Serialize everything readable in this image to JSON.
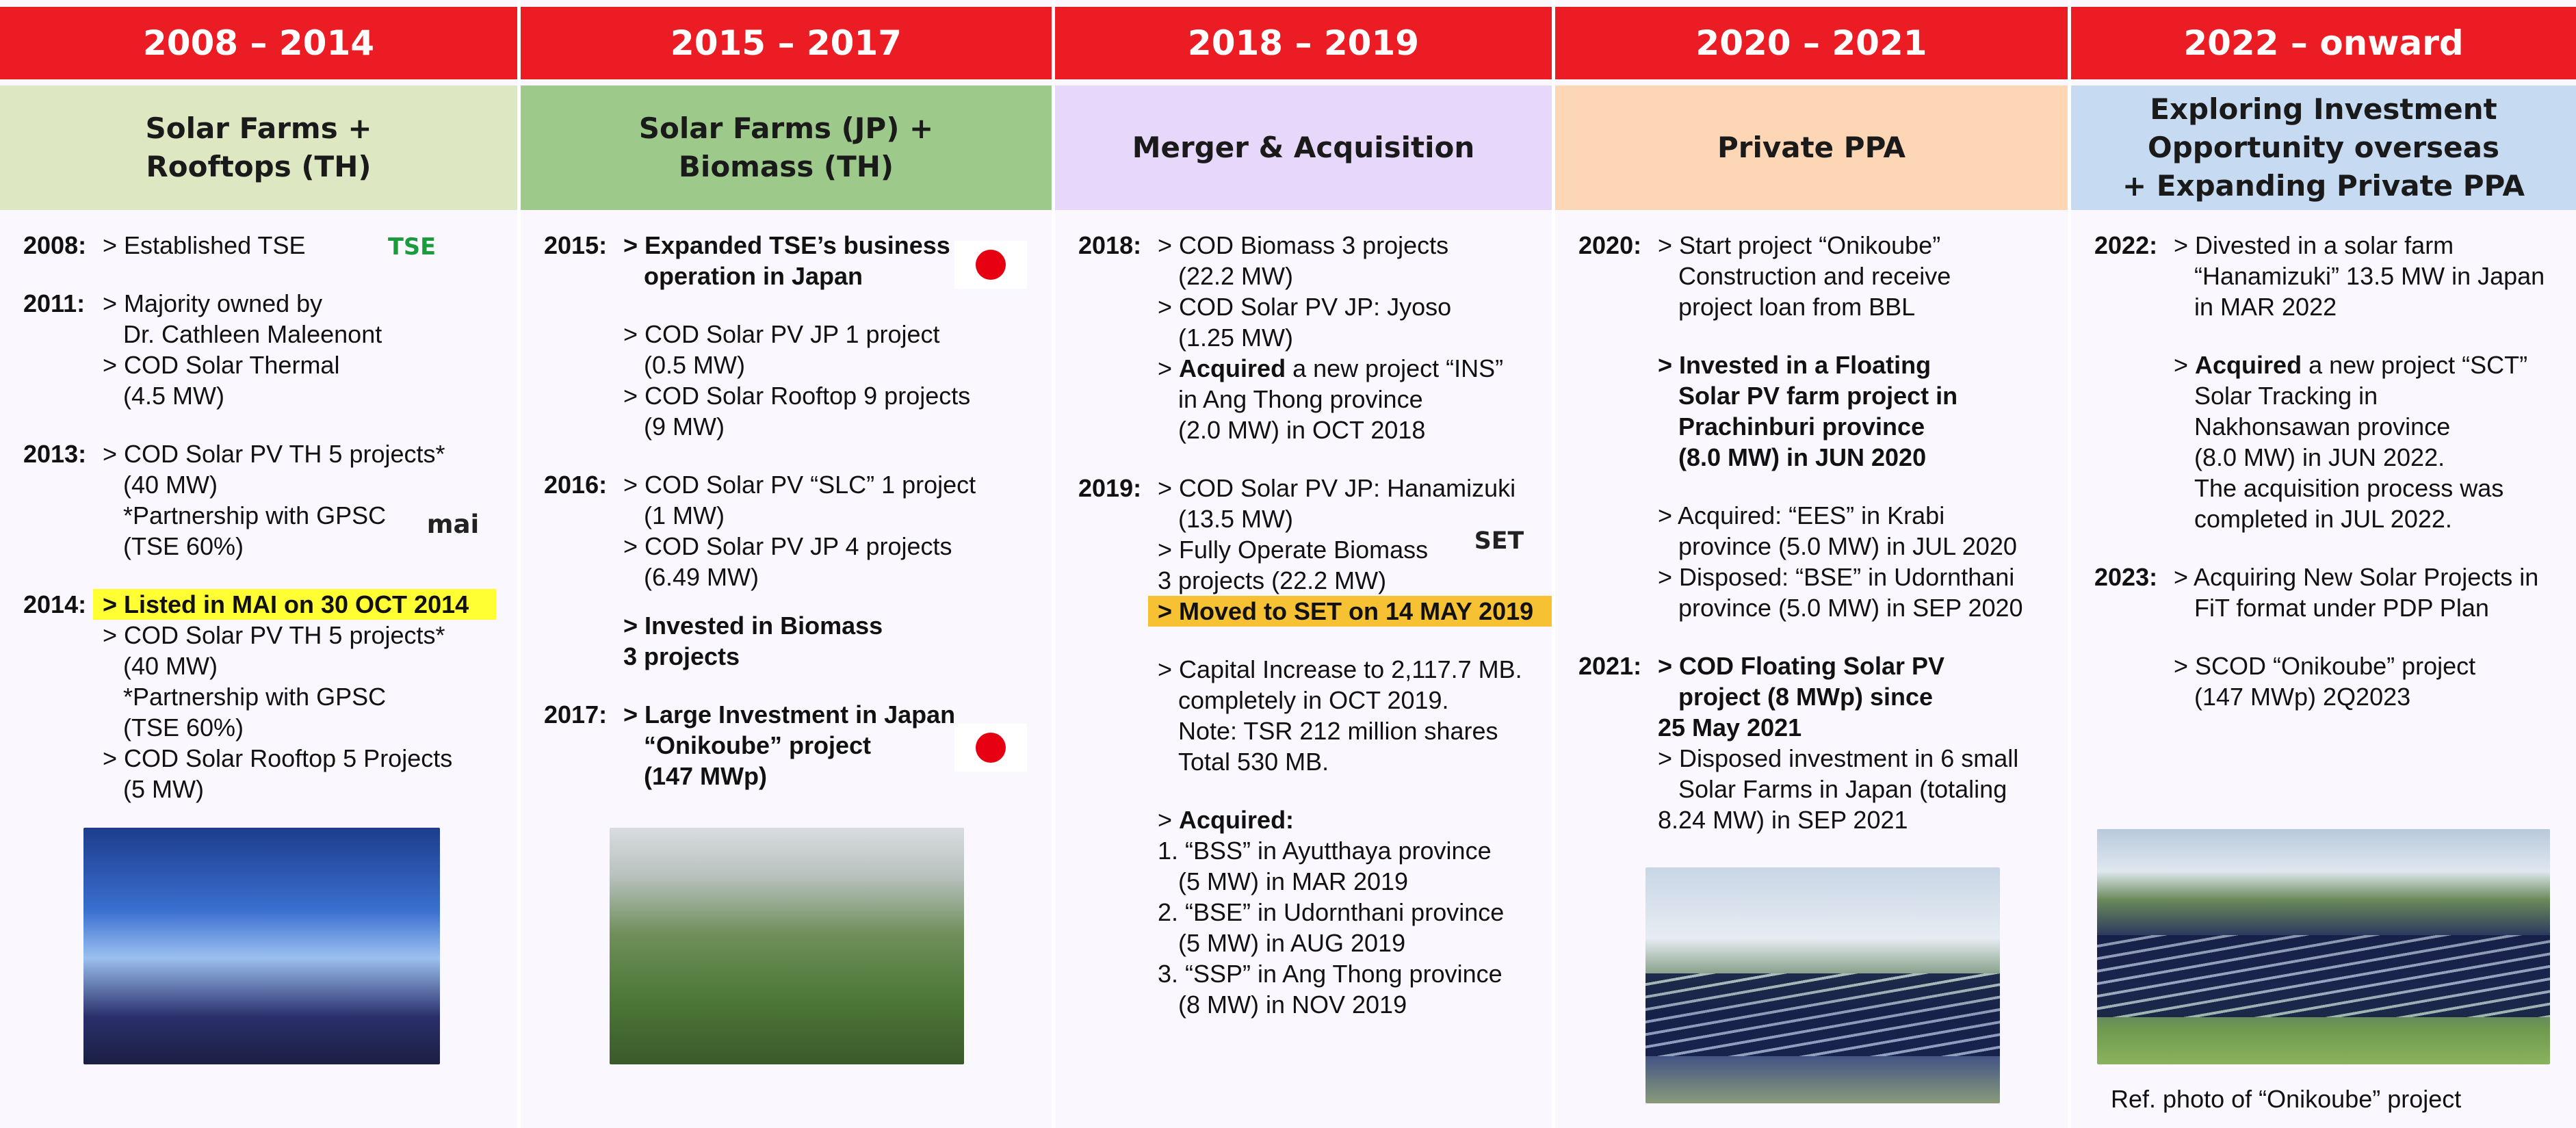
{
  "header_color": "#ec1c24",
  "columns": [
    {
      "period": "2008 – 2014",
      "theme": "Solar  Farms +\nRooftops (TH)",
      "theme_color": "#dde7c1",
      "logos": [
        "TSE",
        "mai"
      ],
      "entries": [
        {
          "year": "2008:",
          "lines": [
            "> Established TSE"
          ]
        },
        {
          "year": "2011:",
          "lines": [
            "> Majority owned by",
            "Dr. Cathleen Maleenont",
            "> COD Solar Thermal",
            "(4.5 MW)"
          ]
        },
        {
          "year": "2013:",
          "lines": [
            "> COD Solar PV TH 5 projects*",
            "(40 MW)",
            "*Partnership with GPSC",
            "(TSE 60%)"
          ]
        },
        {
          "year": "2014:",
          "lines": [
            {
              "text": "> Listed in MAI on 30 OCT 2014",
              "bold": true,
              "highlight": "#ffff33"
            },
            "> COD Solar PV TH 5 projects*",
            "(40 MW)",
            "*Partnership with GPSC",
            "(TSE 60%)",
            "> COD Solar Rooftop 5 Projects",
            "(5 MW)"
          ]
        }
      ]
    },
    {
      "period": "2015 – 2017",
      "theme": "Solar Farms (JP) +\nBiomass (TH)",
      "theme_color": "#9dc98a",
      "entries": [
        {
          "year": "2015:",
          "lines": [
            {
              "text": "> Expanded TSE’s business",
              "bold": true
            },
            {
              "text": "operation in Japan",
              "bold": true
            }
          ]
        },
        {
          "lines": [
            "> COD Solar PV JP 1 project",
            "(0.5 MW)",
            "> COD Solar Rooftop 9 projects",
            "(9 MW)"
          ]
        },
        {
          "year": "2016:",
          "lines": [
            "> COD Solar PV “SLC” 1 project",
            "(1 MW)",
            "> COD Solar PV JP 4 projects",
            "(6.49 MW)"
          ]
        },
        {
          "lines": [
            {
              "text": "> Invested in Biomass",
              "bold": true
            },
            {
              "text": "3 projects",
              "bold": true
            }
          ]
        },
        {
          "year": "2017:",
          "lines": [
            {
              "text": "> Large Investment in Japan",
              "bold": true
            },
            {
              "text": "“Onikoube” project",
              "bold": true
            },
            {
              "text": "(147 MWp)",
              "bold": true
            }
          ]
        }
      ]
    },
    {
      "period": "2018 – 2019",
      "theme": "Merger & Acquisition",
      "theme_color": "#e7d8fb",
      "logos": [
        "SET"
      ],
      "entries": [
        {
          "year": "2018:",
          "lines": [
            "> COD Biomass 3 projects",
            "(22.2 MW)",
            "> COD Solar PV JP: Jyoso",
            "(1.25 MW)",
            {
              "parts": [
                "> ",
                {
                  "text": "Acquired",
                  "bold": true
                },
                " a new project “INS”"
              ]
            },
            "in Ang Thong province",
            "(2.0 MW) in OCT 2018"
          ]
        },
        {
          "year": "2019:",
          "lines": [
            "> COD Solar PV JP: Hanamizuki",
            "(13.5 MW)",
            "> Fully Operate Biomass",
            "3 projects (22.2 MW)",
            {
              "text": "> Moved to SET on 14 MAY 2019",
              "bold": true,
              "highlight": "#f6c233"
            }
          ]
        },
        {
          "lines": [
            "> Capital Increase to 2,117.7 MB.",
            "completely in OCT 2019.",
            "Note: TSR 212 million shares",
            "Total 530 MB."
          ]
        },
        {
          "lines": [
            {
              "parts": [
                "> ",
                {
                  "text": "Acquired:",
                  "bold": true
                }
              ]
            },
            "1. “BSS” in Ayutthaya province",
            "(5 MW) in MAR 2019",
            "2. “BSE” in Udornthani province",
            "(5 MW) in AUG 2019",
            "3. “SSP” in Ang Thong province",
            "(8 MW) in NOV 2019"
          ]
        }
      ]
    },
    {
      "period": "2020 – 2021",
      "theme": "Private PPA",
      "theme_color": "#fdd6b6",
      "entries": [
        {
          "year": "2020:",
          "lines": [
            "> Start project “Onikoube”",
            "Construction and receive",
            "project loan from BBL"
          ]
        },
        {
          "lines": [
            {
              "text": "> Invested in a Floating",
              "bold": true
            },
            {
              "text": "Solar PV farm project in",
              "bold": true
            },
            {
              "text": "Prachinburi province",
              "bold": true
            },
            {
              "text": "(8.0 MW) in JUN 2020",
              "bold": true
            }
          ]
        },
        {
          "lines": [
            "> Acquired: “EES” in Krabi",
            "province (5.0 MW) in JUL 2020",
            "> Disposed: “BSE” in Udornthani",
            "province (5.0 MW) in SEP 2020"
          ]
        },
        {
          "year": "2021:",
          "lines": [
            {
              "text": "> COD Floating Solar PV",
              "bold": true
            },
            {
              "text": "project (8 MWp) since",
              "bold": true
            },
            {
              "text": "25 May 2021",
              "bold": true
            },
            "> Disposed investment in 6 small",
            "Solar Farms in Japan (totaling",
            "8.24 MW) in SEP 2021"
          ]
        }
      ]
    },
    {
      "period": "2022 – onward",
      "theme": "Exploring Investment\nOpportunity overseas\n+ Expanding Private PPA",
      "theme_color": "#c6daf2",
      "caption": "Ref. photo of “Onikoube” project",
      "entries": [
        {
          "year": "2022:",
          "lines": [
            "> Divested in a solar farm",
            "“Hanamizuki” 13.5 MW in Japan",
            "in MAR 2022"
          ]
        },
        {
          "lines": [
            {
              "parts": [
                "> ",
                {
                  "text": "Acquired",
                  "bold": true
                },
                " a new project “SCT”"
              ]
            },
            "Solar Tracking in",
            "Nakhonsawan province",
            "(8.0 MW) in JUN 2022.",
            "The acquisition process was",
            "completed in JUL 2022."
          ]
        },
        {
          "year": "2023:",
          "lines": [
            "> Acquiring New Solar Projects in",
            "FiT format under PDP Plan"
          ]
        },
        {
          "lines": [
            "> SCOD “Onikoube” project",
            "(147 MWp) 2Q2023"
          ]
        }
      ]
    }
  ]
}
